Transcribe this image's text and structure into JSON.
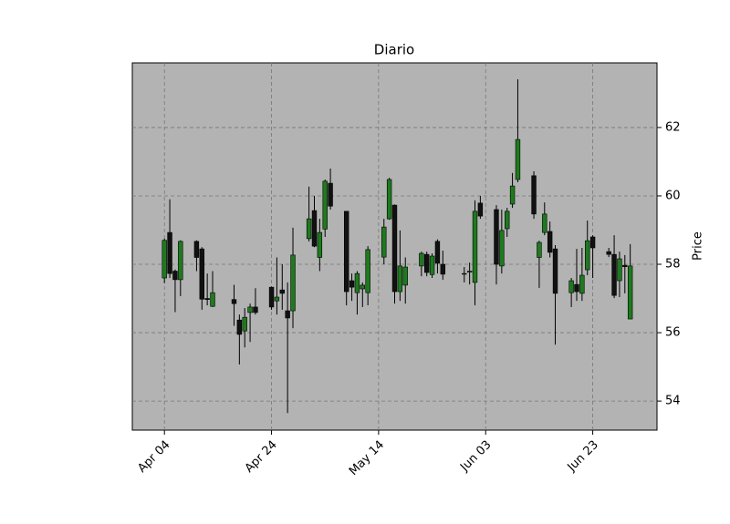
{
  "chart_data": {
    "type": "candlestick",
    "title": "Diario",
    "y_label": "Price",
    "x": [
      "Apr 04",
      "Apr 05",
      "Apr 06",
      "Apr 07",
      "Apr 10",
      "Apr 11",
      "Apr 12",
      "Apr 13",
      "Apr 17",
      "Apr 18",
      "Apr 19",
      "Apr 20",
      "Apr 21",
      "Apr 24",
      "Apr 25",
      "Apr 26",
      "Apr 27",
      "Apr 28",
      "May 01",
      "May 02",
      "May 03",
      "May 04",
      "May 05",
      "May 08",
      "May 09",
      "May 10",
      "May 11",
      "May 12",
      "May 15",
      "May 16",
      "May 17",
      "May 18",
      "May 19",
      "May 22",
      "May 23",
      "May 24",
      "May 25",
      "May 26",
      "May 30",
      "May 31",
      "Jun 01",
      "Jun 02",
      "Jun 05",
      "Jun 06",
      "Jun 07",
      "Jun 08",
      "Jun 09",
      "Jun 12",
      "Jun 13",
      "Jun 14",
      "Jun 15",
      "Jun 16",
      "Jun 19",
      "Jun 20",
      "Jun 21",
      "Jun 22",
      "Jun 23",
      "Jun 26",
      "Jun 27",
      "Jun 28",
      "Jun 29",
      "Jun 30"
    ],
    "open": [
      57.6,
      58.93,
      57.8,
      57.55,
      58.67,
      58.45,
      57.0,
      56.77,
      56.97,
      56.37,
      56.05,
      56.59,
      56.75,
      57.33,
      56.93,
      57.25,
      56.64,
      56.64,
      58.75,
      59.57,
      58.2,
      59.03,
      60.37,
      59.55,
      57.52,
      57.17,
      57.28,
      57.17,
      58.21,
      59.33,
      59.73,
      57.2,
      57.39,
      57.95,
      58.29,
      57.7,
      58.67,
      58.0,
      57.73,
      57.77,
      57.47,
      59.79,
      59.6,
      57.95,
      59.04,
      59.76,
      60.48,
      60.59,
      58.2,
      58.93,
      58.96,
      58.45,
      57.17,
      57.41,
      57.15,
      57.84,
      58.8,
      58.37,
      58.29,
      57.52,
      57.97,
      56.4
    ],
    "high": [
      58.75,
      59.9,
      57.85,
      58.7,
      58.7,
      58.5,
      57.73,
      57.8,
      57.4,
      56.53,
      56.72,
      56.85,
      57.3,
      57.35,
      58.2,
      58.0,
      57.47,
      59.07,
      60.27,
      60.0,
      59.33,
      60.48,
      60.8,
      59.55,
      57.73,
      57.8,
      57.47,
      58.53,
      59.33,
      60.53,
      59.75,
      58.99,
      58.2,
      58.37,
      58.37,
      58.32,
      58.73,
      58.4,
      57.92,
      58.05,
      59.87,
      60.0,
      59.73,
      59.6,
      59.65,
      60.67,
      63.41,
      60.72,
      58.69,
      59.81,
      59.25,
      58.56,
      57.6,
      58.45,
      58.48,
      59.28,
      58.85,
      58.48,
      58.85,
      58.37,
      58.27,
      58.59
    ],
    "low": [
      57.45,
      57.6,
      56.6,
      57.07,
      57.8,
      56.67,
      56.8,
      56.75,
      56.2,
      55.07,
      55.57,
      55.73,
      56.53,
      56.67,
      56.53,
      56.67,
      53.65,
      56.13,
      58.67,
      58.5,
      57.8,
      58.8,
      59.6,
      56.8,
      56.93,
      56.53,
      56.75,
      56.8,
      58.0,
      59.3,
      56.85,
      56.93,
      56.85,
      57.65,
      57.65,
      57.6,
      57.73,
      57.55,
      57.47,
      57.41,
      56.8,
      59.33,
      57.41,
      57.73,
      58.8,
      59.65,
      60.4,
      59.33,
      57.31,
      58.85,
      58.2,
      55.65,
      56.75,
      56.93,
      56.93,
      57.68,
      57.6,
      58.21,
      57.01,
      57.04,
      57.15,
      56.4
    ],
    "close": [
      58.7,
      57.73,
      57.55,
      58.67,
      58.2,
      56.98,
      56.97,
      57.17,
      56.85,
      55.95,
      56.45,
      56.75,
      56.59,
      56.75,
      57.04,
      57.15,
      56.43,
      58.27,
      59.33,
      58.53,
      58.93,
      60.43,
      59.7,
      57.2,
      57.33,
      57.73,
      57.39,
      58.43,
      59.09,
      60.48,
      57.2,
      57.95,
      57.92,
      58.32,
      57.76,
      58.24,
      58.03,
      57.71,
      57.73,
      57.8,
      59.55,
      59.41,
      58.0,
      58.99,
      59.55,
      60.29,
      61.65,
      59.47,
      58.64,
      59.47,
      58.35,
      57.15,
      57.52,
      57.2,
      57.68,
      58.69,
      58.48,
      58.29,
      57.09,
      58.16,
      57.93,
      57.95
    ],
    "up_color": "#1e7a1e",
    "down_color": "#111111",
    "background": "#b3b3b3",
    "grid": true,
    "xlim": [
      "Mar 29",
      "Jul 05"
    ],
    "xticks": [
      "Apr 04",
      "Apr 24",
      "May 14",
      "Jun 03",
      "Jun 23"
    ],
    "ylim": [
      53.15,
      63.89
    ],
    "yticks": [
      54,
      56,
      58,
      60,
      62
    ],
    "y_axis_side": "right"
  }
}
